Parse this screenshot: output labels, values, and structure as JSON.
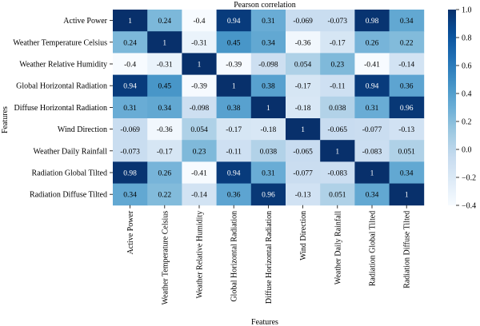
{
  "chart_data": {
    "type": "heatmap",
    "title": "Pearson correlation",
    "xlabel": "Features",
    "ylabel": "Features",
    "rows": [
      "Active Power",
      "Weather Temperature Celsius",
      "Weather Relative Humidity",
      "Global Horizontal Radiation",
      "Diffuse Horizontal Radiation",
      "Wind Direction",
      "Weather Daily Rainfall",
      "Radiation Global Tilted",
      "Radiation Diffuse Tilted"
    ],
    "columns": [
      "Active Power",
      "Weather Temperature Celsius",
      "Weather Relative Humidity",
      "Global Horizontal Radiation",
      "Diffuse Horizontal Radiation",
      "Wind Direction",
      "Weather Daily Rainfall",
      "Radiation Global Tilted",
      "Radiation Diffuse Tilted"
    ],
    "values": [
      [
        1,
        0.24,
        -0.4,
        0.94,
        0.31,
        -0.069,
        -0.073,
        0.98,
        0.34
      ],
      [
        0.24,
        1,
        -0.31,
        0.45,
        0.34,
        -0.36,
        -0.17,
        0.26,
        0.22
      ],
      [
        -0.4,
        -0.31,
        1,
        -0.39,
        -0.098,
        0.054,
        0.23,
        -0.41,
        -0.14
      ],
      [
        0.94,
        0.45,
        -0.39,
        1,
        0.38,
        -0.17,
        -0.11,
        0.94,
        0.36
      ],
      [
        0.31,
        0.34,
        -0.098,
        0.38,
        1,
        -0.18,
        0.038,
        0.31,
        0.96
      ],
      [
        -0.069,
        -0.36,
        0.054,
        -0.17,
        -0.18,
        1,
        -0.065,
        -0.077,
        -0.13
      ],
      [
        -0.073,
        -0.17,
        0.23,
        -0.11,
        0.038,
        -0.065,
        1,
        -0.083,
        0.051
      ],
      [
        0.98,
        0.26,
        -0.41,
        0.94,
        0.31,
        -0.077,
        -0.083,
        1,
        0.34
      ],
      [
        0.34,
        0.22,
        -0.14,
        0.36,
        0.96,
        -0.13,
        0.051,
        0.34,
        1
      ]
    ],
    "value_labels": [
      [
        "1",
        "0.24",
        "-0.4",
        "0.94",
        "0.31",
        "-0.069",
        "-0.073",
        "0.98",
        "0.34"
      ],
      [
        "0.24",
        "1",
        "-0.31",
        "0.45",
        "0.34",
        "-0.36",
        "-0.17",
        "0.26",
        "0.22"
      ],
      [
        "-0.4",
        "-0.31",
        "1",
        "-0.39",
        "-0.098",
        "0.054",
        "0.23",
        "-0.41",
        "-0.14"
      ],
      [
        "0.94",
        "0.45",
        "-0.39",
        "1",
        "0.38",
        "-0.17",
        "-0.11",
        "0.94",
        "0.36"
      ],
      [
        "0.31",
        "0.34",
        "-0.098",
        "0.38",
        "1",
        "-0.18",
        "0.038",
        "0.31",
        "0.96"
      ],
      [
        "-0.069",
        "-0.36",
        "0.054",
        "-0.17",
        "-0.18",
        "1",
        "-0.065",
        "-0.077",
        "-0.13"
      ],
      [
        "-0.073",
        "-0.17",
        "0.23",
        "-0.11",
        "0.038",
        "-0.065",
        "1",
        "-0.083",
        "0.051"
      ],
      [
        "0.98",
        "0.26",
        "-0.41",
        "0.94",
        "0.31",
        "-0.077",
        "-0.083",
        "1",
        "0.34"
      ],
      [
        "0.34",
        "0.22",
        "-0.14",
        "0.36",
        "0.96",
        "-0.13",
        "0.051",
        "0.34",
        "1"
      ]
    ],
    "colorbar": {
      "range": [
        -0.4,
        1.0
      ],
      "ticks": [
        -0.4,
        -0.2,
        0.0,
        0.2,
        0.4,
        0.6,
        0.8,
        1.0
      ],
      "tick_labels": [
        "−0.4",
        "−0.2",
        "0.0",
        "0.2",
        "0.4",
        "0.6",
        "0.8",
        "1.0"
      ],
      "colormap": "Blues",
      "low_color": "#f7fbff",
      "high_color": "#08306b"
    },
    "grid": false
  }
}
